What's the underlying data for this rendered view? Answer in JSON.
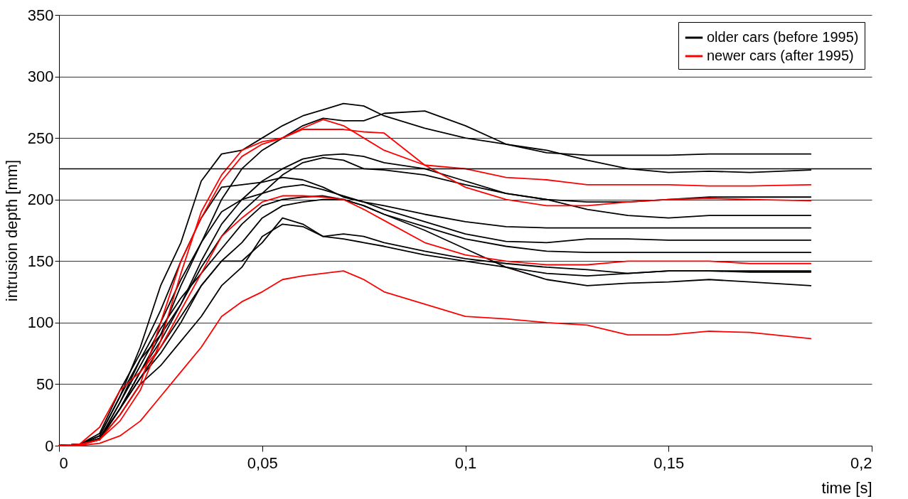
{
  "chart_data": {
    "type": "line",
    "xlabel": "time [s]",
    "ylabel": "intrusion depth [mm]",
    "x": [
      0,
      0.005,
      0.01,
      0.015,
      0.02,
      0.025,
      0.03,
      0.035,
      0.04,
      0.045,
      0.05,
      0.055,
      0.06,
      0.065,
      0.07,
      0.075,
      0.08,
      0.09,
      0.1,
      0.11,
      0.12,
      0.13,
      0.14,
      0.15,
      0.16,
      0.17,
      0.185
    ],
    "xlim": [
      0,
      0.2
    ],
    "xticks": [
      0,
      {
        "value": 0.05,
        "label": "0,05"
      },
      {
        "value": 0.1,
        "label": "0,1"
      },
      {
        "value": 0.15,
        "label": "0,15"
      },
      {
        "value": 0.2,
        "label": "0,2"
      }
    ],
    "ylim": [
      0,
      350
    ],
    "yticks": [
      0,
      50,
      100,
      150,
      200,
      250,
      300,
      350
    ],
    "grid": "y",
    "legend": "top right",
    "marker": "none",
    "line_style": "solid",
    "ref_lines": [
      {
        "axis": "y",
        "value": 225,
        "color": "#000000"
      }
    ],
    "series": [
      {
        "name": "older cars (before 1995)",
        "color": "#000000",
        "values": [
          0,
          1,
          8,
          40,
          80,
          130,
          165,
          215,
          237,
          240,
          250,
          260,
          268,
          273,
          278,
          276,
          268,
          258,
          250,
          245,
          240,
          232,
          225,
          222,
          223,
          222,
          224
        ]
      },
      {
        "color": "#000000",
        "values": [
          0,
          1,
          5,
          30,
          60,
          90,
          130,
          165,
          200,
          225,
          240,
          250,
          260,
          266,
          264,
          264,
          270,
          272,
          260,
          245,
          238,
          236,
          236,
          236,
          237,
          237,
          237
        ]
      },
      {
        "color": "#000000",
        "values": [
          0,
          1,
          5,
          30,
          60,
          85,
          115,
          150,
          180,
          200,
          215,
          225,
          233,
          236,
          237,
          235,
          230,
          225,
          215,
          205,
          200,
          192,
          187,
          185,
          187,
          187,
          187
        ]
      },
      {
        "color": "#000000",
        "values": [
          0,
          1,
          5,
          35,
          70,
          90,
          115,
          145,
          170,
          190,
          205,
          220,
          230,
          234,
          232,
          225,
          224,
          220,
          212,
          205,
          200,
          198,
          198,
          200,
          202,
          202,
          202
        ]
      },
      {
        "color": "#000000",
        "values": [
          0,
          1,
          10,
          45,
          75,
          110,
          150,
          185,
          210,
          212,
          214,
          218,
          216,
          210,
          202,
          198,
          195,
          188,
          182,
          178,
          177,
          177,
          177,
          177,
          177,
          177,
          177
        ]
      },
      {
        "color": "#000000",
        "values": [
          0,
          1,
          8,
          40,
          70,
          100,
          135,
          165,
          190,
          200,
          205,
          210,
          212,
          208,
          203,
          198,
          192,
          182,
          172,
          166,
          165,
          168,
          168,
          167,
          167,
          167,
          167
        ]
      },
      {
        "color": "#000000",
        "values": [
          0,
          1,
          6,
          35,
          65,
          95,
          120,
          140,
          160,
          180,
          195,
          200,
          202,
          203,
          200,
          195,
          188,
          178,
          168,
          162,
          158,
          157,
          157,
          157,
          157,
          157,
          157
        ]
      },
      {
        "color": "#000000",
        "values": [
          0,
          1,
          5,
          30,
          55,
          75,
          100,
          130,
          150,
          150,
          165,
          185,
          180,
          170,
          172,
          170,
          165,
          158,
          152,
          148,
          145,
          143,
          140,
          142,
          142,
          141,
          141
        ]
      },
      {
        "color": "#000000",
        "values": [
          0,
          1,
          5,
          25,
          50,
          65,
          85,
          105,
          130,
          145,
          170,
          180,
          178,
          170,
          168,
          165,
          162,
          155,
          150,
          145,
          140,
          138,
          140,
          142,
          142,
          142,
          142
        ]
      },
      {
        "color": "#000000",
        "values": [
          0,
          1,
          6,
          30,
          55,
          80,
          105,
          130,
          150,
          165,
          185,
          195,
          198,
          200,
          200,
          195,
          188,
          175,
          160,
          145,
          135,
          130,
          132,
          133,
          135,
          133,
          130
        ]
      },
      {
        "name": "newer cars (after 1995)",
        "color": "#ff0000",
        "values": [
          0,
          1,
          5,
          25,
          50,
          100,
          150,
          185,
          215,
          235,
          245,
          250,
          258,
          265,
          260,
          250,
          240,
          228,
          210,
          200,
          195,
          195,
          198,
          200,
          201,
          200,
          199
        ]
      },
      {
        "color": "#ff0000",
        "values": [
          0,
          0,
          5,
          20,
          45,
          85,
          140,
          190,
          220,
          240,
          247,
          250,
          257,
          257,
          257,
          255,
          254,
          228,
          225,
          218,
          216,
          212,
          212,
          212,
          211,
          211,
          212
        ]
      },
      {
        "color": "#ff0000",
        "values": [
          0,
          1,
          15,
          45,
          60,
          80,
          110,
          140,
          170,
          185,
          198,
          203,
          203,
          202,
          200,
          192,
          183,
          165,
          155,
          150,
          147,
          147,
          150,
          150,
          150,
          148,
          148
        ]
      },
      {
        "color": "#ff0000",
        "values": [
          0,
          0,
          2,
          8,
          20,
          40,
          60,
          80,
          105,
          117,
          125,
          135,
          138,
          140,
          142,
          135,
          125,
          115,
          105,
          103,
          100,
          98,
          90,
          90,
          93,
          92,
          87
        ]
      }
    ]
  }
}
